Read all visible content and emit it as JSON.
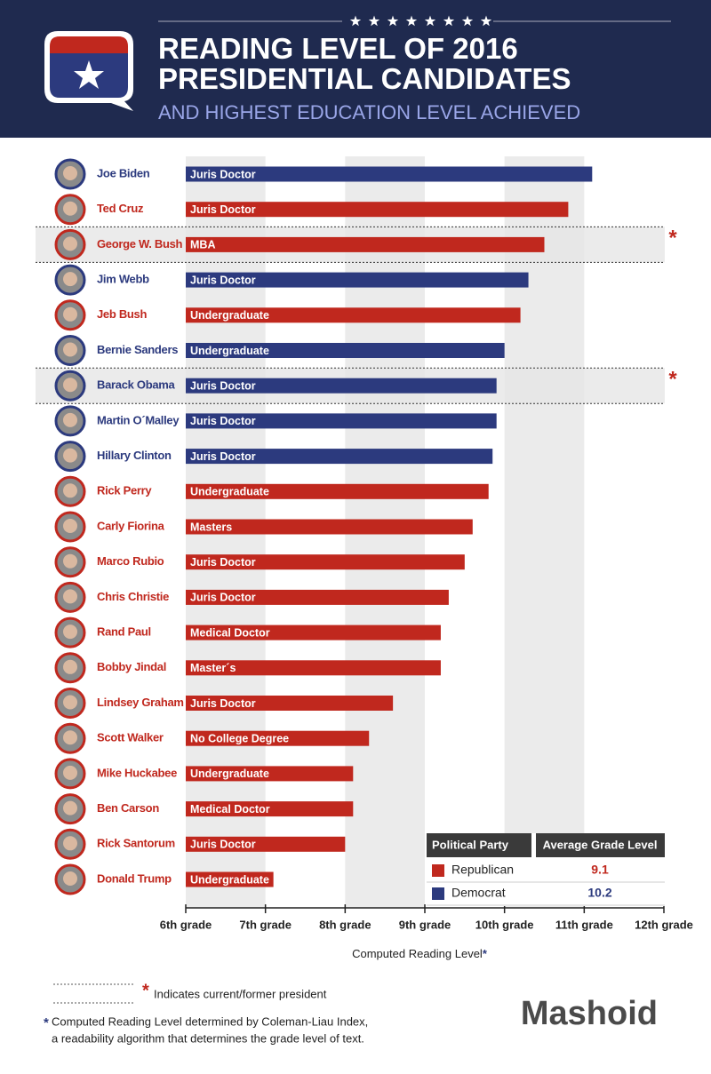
{
  "chart_data": {
    "type": "bar",
    "title": "READING LEVEL OF 2016 PRESIDENTIAL CANDIDATES",
    "subtitle": "AND HIGHEST EDUCATION LEVEL ACHIEVED",
    "categories": [
      "Joe Biden",
      "Ted Cruz",
      "George W. Bush",
      "Jim Webb",
      "Jeb Bush",
      "Bernie Sanders",
      "Barack Obama",
      "Martin O´Malley",
      "Hillary Clinton",
      "Rick Perry",
      "Carly Fiorina",
      "Marco Rubio",
      "Chris Christie",
      "Rand Paul",
      "Bobby Jindal",
      "Lindsey Graham",
      "Scott Walker",
      "Mike Huckabee",
      "Ben Carson",
      "Rick Santorum",
      "Donald Trump"
    ],
    "values": [
      11.1,
      10.8,
      10.5,
      10.3,
      10.2,
      10.0,
      9.9,
      9.9,
      9.85,
      9.8,
      9.6,
      9.5,
      9.3,
      9.2,
      9.2,
      8.6,
      8.3,
      8.1,
      8.1,
      8.0,
      7.1
    ],
    "bar_labels": [
      "Juris Doctor",
      "Juris Doctor",
      "MBA",
      "Juris Doctor",
      "Undergraduate",
      "Undergraduate",
      "Juris Doctor",
      "Juris Doctor",
      "Juris Doctor",
      "Undergraduate",
      "Masters",
      "Juris Doctor",
      "Juris Doctor",
      "Medical Doctor",
      "Master´s",
      "Juris Doctor",
      "No College Degree",
      "Undergraduate",
      "Medical Doctor",
      "Juris Doctor",
      "Undergraduate"
    ],
    "bar_colors": [
      "#2c3a7e",
      "#c0281e",
      "#c0281e",
      "#2c3a7e",
      "#c0281e",
      "#2c3a7e",
      "#2c3a7e",
      "#2c3a7e",
      "#2c3a7e",
      "#c0281e",
      "#c0281e",
      "#c0281e",
      "#c0281e",
      "#c0281e",
      "#c0281e",
      "#c0281e",
      "#c0281e",
      "#c0281e",
      "#c0281e",
      "#c0281e",
      "#c0281e"
    ],
    "highlight": [
      2,
      6
    ],
    "highlight_marker": "*",
    "xlim": [
      6,
      12
    ],
    "xticks": [
      {
        "value": 6,
        "label": "6th grade"
      },
      {
        "value": 7,
        "label": "7th grade"
      },
      {
        "value": 8,
        "label": "8th grade"
      },
      {
        "value": 9,
        "label": "9th grade"
      },
      {
        "value": 10,
        "label": "10th grade"
      },
      {
        "value": 11,
        "label": "11th grade"
      },
      {
        "value": 12,
        "label": "12th grade"
      }
    ],
    "xlabel": "Computed Reading Level",
    "xlabel_marker": "*",
    "legend": {
      "headers": [
        "Political Party",
        "Average Grade Level"
      ],
      "rows": [
        {
          "name": "Republican",
          "color": "#c0281e",
          "value": 9.1
        },
        {
          "name": "Democrat",
          "color": "#2c3a7e",
          "value": 10.2
        }
      ]
    },
    "president_note": {
      "marker": "*",
      "text": "Indicates current/former president"
    },
    "footnote": {
      "marker": "*",
      "lines": [
        "Computed Reading Level determined by Coleman-Liau Index,",
        "a readability algorithm that determines the grade level of text."
      ]
    },
    "brand": "Mashoid"
  }
}
